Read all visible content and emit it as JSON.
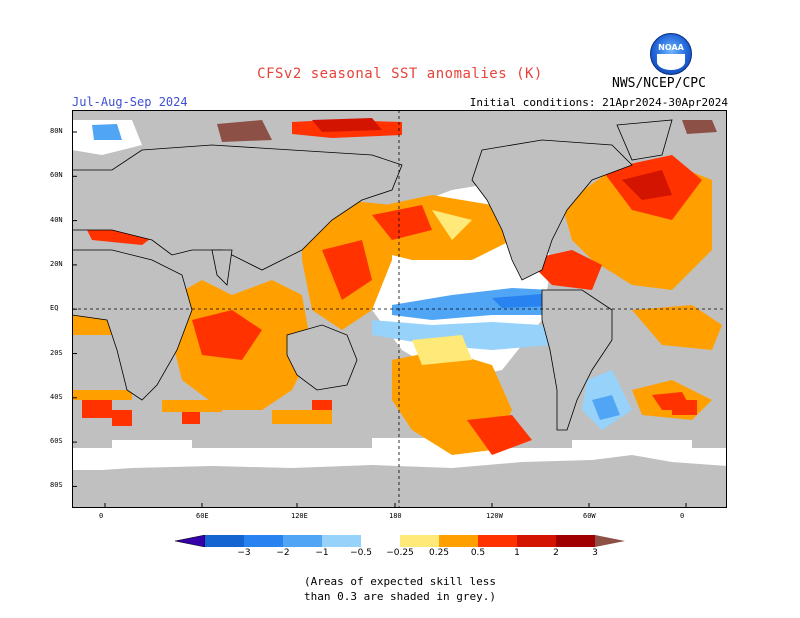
{
  "title": "CFSv2 seasonal SST anomalies (K)",
  "agency": "NWS/NCEP/CPC",
  "logo_text": "NOAA",
  "season": "Jul-Aug-Sep 2024",
  "initial_conditions": "Initial conditions: 21Apr2024-30Apr2024",
  "lat_labels": [
    "80N",
    "60N",
    "40N",
    "20N",
    "EQ",
    "20S",
    "40S",
    "60S",
    "80S"
  ],
  "lon_labels": [
    "0",
    "60E",
    "120E",
    "180",
    "120W",
    "60W",
    "0"
  ],
  "colorbar": {
    "labels": [
      "−3",
      "−2",
      "−1",
      "−0.5",
      "−0.25",
      "0.25",
      "0.5",
      "1",
      "2",
      "3"
    ],
    "colors": [
      "#3300aa",
      "#1464d2",
      "#2882f0",
      "#50a5f5",
      "#96d2fa",
      "#ffffff",
      "#ffe978",
      "#ffa000",
      "#ff3200",
      "#d21400",
      "#a00000",
      "#8c5046"
    ]
  },
  "note_line1": "(Areas of expected skill less",
  "note_line2": "than 0.3 are shaded in grey.)",
  "colors": {
    "skill_grey": "#c0c0c0",
    "warm_05": "#ffe978",
    "warm_1": "#ffa000",
    "warm_2": "#ff3200",
    "warm_3": "#d21400",
    "warm_max": "#a00000",
    "cold_025": "#96d2fa",
    "cold_05": "#50a5f5",
    "cold_1": "#2882f0",
    "land_brown": "#8c5046"
  }
}
